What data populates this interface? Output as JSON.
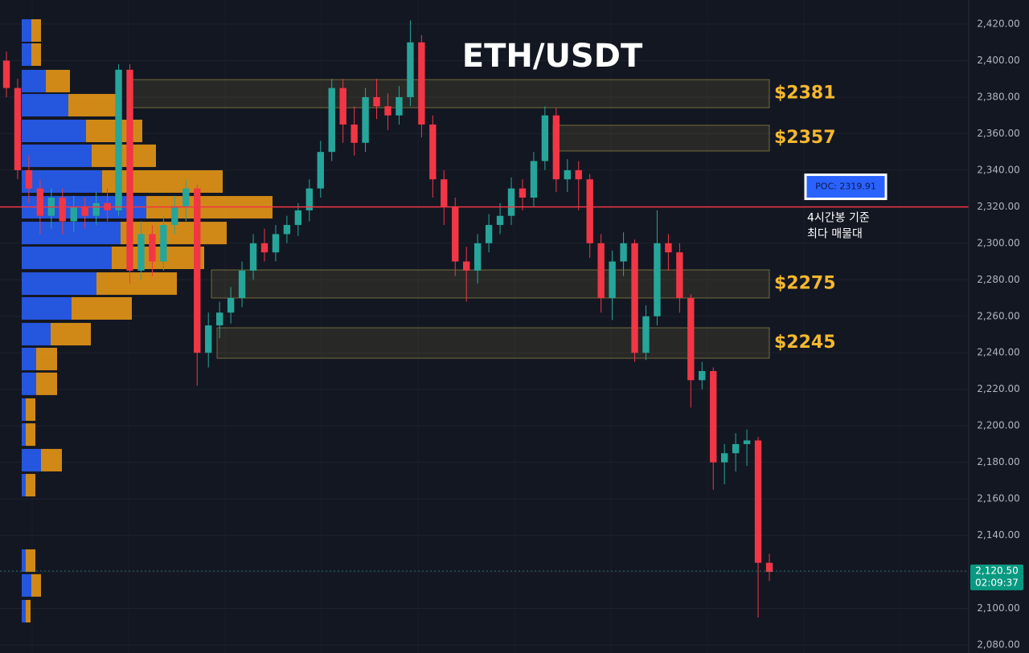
{
  "chart_data": {
    "type": "candlestick",
    "title": "ETH/USDT",
    "ylim": [
      2075.6,
      2433.2
    ],
    "yticks": [
      {
        "value": 2080,
        "label": "2,080.00"
      },
      {
        "value": 2100,
        "label": "2,100.00"
      },
      {
        "value": 2120,
        "label": "2,120.00"
      },
      {
        "value": 2140,
        "label": "2,140.00"
      },
      {
        "value": 2160,
        "label": "2,160.00"
      },
      {
        "value": 2180,
        "label": "2,180.00"
      },
      {
        "value": 2200,
        "label": "2,200.00"
      },
      {
        "value": 2220,
        "label": "2,220.00"
      },
      {
        "value": 2240,
        "label": "2,240.00"
      },
      {
        "value": 2260,
        "label": "2,260.00"
      },
      {
        "value": 2280,
        "label": "2,280.00"
      },
      {
        "value": 2300,
        "label": "2,300.00"
      },
      {
        "value": 2320,
        "label": "2,320.00"
      },
      {
        "value": 2340,
        "label": "2,340.00"
      },
      {
        "value": 2360,
        "label": "2,360.00"
      },
      {
        "value": 2380,
        "label": "2,380.00"
      },
      {
        "value": 2400,
        "label": "2,400.00"
      },
      {
        "value": 2420,
        "label": "2,420.00"
      }
    ],
    "grid": true,
    "up_color": "#26a69a",
    "down_color": "#f23645",
    "open": [
      2400,
      2385,
      2340,
      2330,
      2315,
      2325,
      2312,
      2320,
      2315,
      2322,
      2318,
      2395,
      2285,
      2305,
      2290,
      2310,
      2320,
      2330,
      2240,
      2255,
      2262,
      2270,
      2285,
      2300,
      2295,
      2305,
      2310,
      2318,
      2330,
      2350,
      2385,
      2365,
      2355,
      2380,
      2375,
      2370,
      2380,
      2410,
      2365,
      2335,
      2320,
      2290,
      2285,
      2300,
      2310,
      2315,
      2330,
      2325,
      2345,
      2370,
      2335,
      2340,
      2335,
      2300,
      2270,
      2290,
      2300,
      2240,
      2260,
      2300,
      2295,
      2270,
      2225,
      2230,
      2180,
      2185,
      2190,
      2192,
      2125
    ],
    "high": [
      2405,
      2390,
      2348,
      2335,
      2330,
      2330,
      2326,
      2325,
      2328,
      2330,
      2398,
      2398,
      2312,
      2310,
      2315,
      2326,
      2335,
      2332,
      2262,
      2268,
      2276,
      2290,
      2305,
      2308,
      2310,
      2315,
      2322,
      2335,
      2356,
      2390,
      2390,
      2375,
      2385,
      2390,
      2382,
      2386,
      2422,
      2414,
      2370,
      2340,
      2325,
      2298,
      2305,
      2316,
      2322,
      2336,
      2335,
      2350,
      2375,
      2374,
      2346,
      2345,
      2338,
      2305,
      2296,
      2306,
      2302,
      2266,
      2318,
      2305,
      2300,
      2272,
      2235,
      2232,
      2190,
      2196,
      2198,
      2194,
      2130
    ],
    "low": [
      2380,
      2335,
      2322,
      2305,
      2308,
      2305,
      2306,
      2308,
      2310,
      2312,
      2315,
      2278,
      2280,
      2282,
      2285,
      2305,
      2312,
      2222,
      2232,
      2248,
      2256,
      2265,
      2280,
      2290,
      2290,
      2300,
      2304,
      2312,
      2325,
      2345,
      2355,
      2348,
      2350,
      2368,
      2362,
      2365,
      2375,
      2358,
      2325,
      2310,
      2282,
      2268,
      2278,
      2295,
      2305,
      2310,
      2318,
      2320,
      2340,
      2328,
      2328,
      2318,
      2292,
      2262,
      2258,
      2282,
      2235,
      2236,
      2255,
      2285,
      2262,
      2210,
      2220,
      2165,
      2168,
      2175,
      2178,
      2095,
      2115
    ],
    "close": [
      2385,
      2340,
      2330,
      2315,
      2325,
      2312,
      2320,
      2315,
      2322,
      2318,
      2395,
      2285,
      2305,
      2290,
      2310,
      2320,
      2330,
      2240,
      2255,
      2262,
      2270,
      2285,
      2300,
      2295,
      2305,
      2310,
      2318,
      2330,
      2350,
      2385,
      2365,
      2355,
      2380,
      2375,
      2370,
      2380,
      2410,
      2365,
      2335,
      2320,
      2290,
      2285,
      2300,
      2310,
      2315,
      2330,
      2325,
      2345,
      2370,
      2335,
      2340,
      2335,
      2300,
      2270,
      2290,
      2300,
      2240,
      2260,
      2300,
      2295,
      2270,
      2225,
      2230,
      2180,
      2185,
      2190,
      2192,
      2125,
      2120
    ],
    "profile": {
      "levels": [
        2416.5,
        2403.3,
        2388.8,
        2375.6,
        2361.5,
        2347.9,
        2333.8,
        2319.7,
        2305.6,
        2292.0,
        2277.9,
        2264.3,
        2250.2,
        2236.6,
        2223.0,
        2208.9,
        2195.2,
        2181.2,
        2167.5,
        2126.2,
        2112.6,
        2098.5
      ],
      "buy": [
        12,
        12,
        30,
        58,
        80,
        87,
        100,
        155,
        123,
        112,
        93,
        62,
        36,
        18,
        18,
        5,
        5,
        24,
        5,
        5,
        12,
        5
      ],
      "sell": [
        12,
        12,
        30,
        62,
        70,
        80,
        150,
        157,
        132,
        115,
        100,
        75,
        50,
        26,
        26,
        12,
        12,
        26,
        12,
        12,
        12,
        6
      ],
      "buy_color": "#2962ff",
      "sell_color": "#f29d15"
    },
    "zones": [
      {
        "label": "$2381",
        "top": 2389.6,
        "bottom": 2374.2
      },
      {
        "label": "$2357",
        "top": 2364.6,
        "bottom": 2350.5
      },
      {
        "label": "$2275",
        "top": 2285.4,
        "bottom": 2270.0
      },
      {
        "label": "$2245",
        "top": 2253.7,
        "bottom": 2237.0
      }
    ],
    "poc": {
      "value": 2319.91,
      "label": "POC: 2319.91"
    },
    "annotation": [
      "4시간봉 기준",
      "최다 매물대"
    ],
    "last_price": {
      "value": 2120.5,
      "label": "2,120.50"
    },
    "countdown": "02:09:37"
  }
}
